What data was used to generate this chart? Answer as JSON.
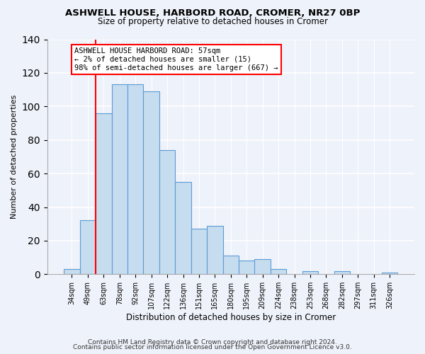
{
  "title": "ASHWELL HOUSE, HARBORD ROAD, CROMER, NR27 0BP",
  "subtitle": "Size of property relative to detached houses in Cromer",
  "xlabel": "Distribution of detached houses by size in Cromer",
  "ylabel": "Number of detached properties",
  "bar_labels": [
    "34sqm",
    "49sqm",
    "63sqm",
    "78sqm",
    "92sqm",
    "107sqm",
    "122sqm",
    "136sqm",
    "151sqm",
    "165sqm",
    "180sqm",
    "195sqm",
    "209sqm",
    "224sqm",
    "238sqm",
    "253sqm",
    "268sqm",
    "282sqm",
    "297sqm",
    "311sqm",
    "326sqm"
  ],
  "bar_values": [
    3,
    32,
    96,
    113,
    113,
    109,
    74,
    55,
    27,
    29,
    11,
    8,
    9,
    3,
    0,
    2,
    0,
    2,
    0,
    0,
    1
  ],
  "bar_color": "#c6dcef",
  "bar_edge_color": "#5b9bd5",
  "ylim": [
    0,
    140
  ],
  "yticks": [
    0,
    20,
    40,
    60,
    80,
    100,
    120,
    140
  ],
  "annotation_box_text": "ASHWELL HOUSE HARBORD ROAD: 57sqm\n← 2% of detached houses are smaller (15)\n98% of semi-detached houses are larger (667) →",
  "vline_x_index": 2,
  "footnote1": "Contains HM Land Registry data © Crown copyright and database right 2024.",
  "footnote2": "Contains public sector information licensed under the Open Government Licence v3.0.",
  "background_color": "#eef2fa"
}
